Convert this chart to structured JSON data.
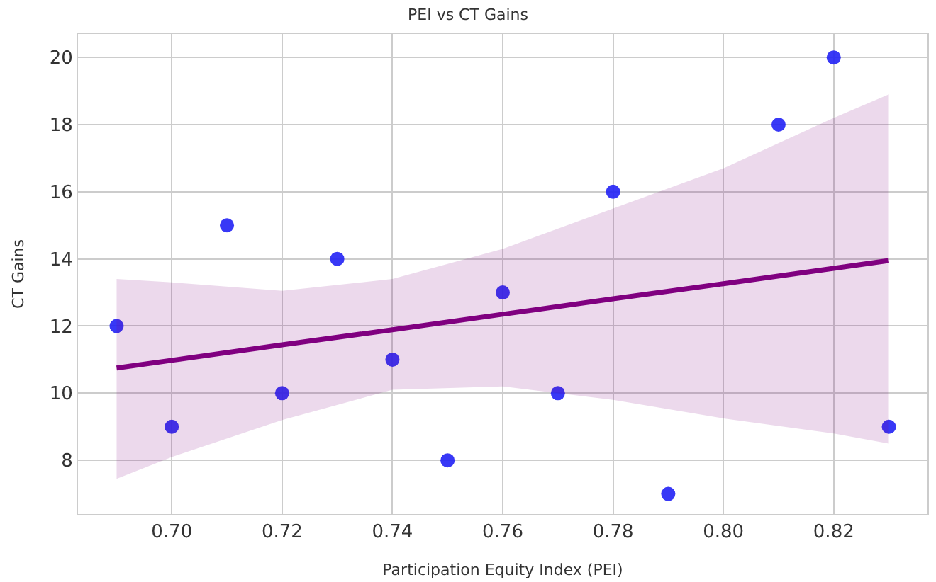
{
  "chart_data": {
    "type": "scatter",
    "title": "PEI vs CT Gains",
    "xlabel": "Participation Equity Index (PEI)",
    "ylabel": "CT Gains",
    "xlim": [
      0.683,
      0.837
    ],
    "xticks": [
      {
        "value": 0.7,
        "label": "0.70"
      },
      {
        "value": 0.72,
        "label": "0.72"
      },
      {
        "value": 0.74,
        "label": "0.74"
      },
      {
        "value": 0.76,
        "label": "0.76"
      },
      {
        "value": 0.78,
        "label": "0.78"
      },
      {
        "value": 0.8,
        "label": "0.80"
      },
      {
        "value": 0.82,
        "label": "0.82"
      }
    ],
    "ylim": [
      6.4,
      20.7
    ],
    "yticks": [
      8,
      10,
      12,
      14,
      16,
      18,
      20
    ],
    "grid": true,
    "series": [
      {
        "marker": "circle",
        "color": "#2222f5",
        "x": [
          0.69,
          0.7,
          0.71,
          0.72,
          0.73,
          0.74,
          0.75,
          0.76,
          0.77,
          0.78,
          0.79,
          0.81,
          0.82,
          0.83
        ],
        "values": [
          12,
          9,
          15,
          10,
          14,
          11,
          8,
          13,
          10,
          16,
          7,
          18,
          20,
          9
        ]
      },
      {
        "type": "line",
        "color": "#800080",
        "x": [
          0.69,
          0.7,
          0.72,
          0.74,
          0.76,
          0.78,
          0.8,
          0.82,
          0.83
        ],
        "values": [
          10.75,
          10.98,
          11.44,
          11.89,
          12.35,
          12.81,
          13.26,
          13.72,
          13.95
        ],
        "lower": [
          7.45,
          8.1,
          9.2,
          10.1,
          10.2,
          9.8,
          9.25,
          8.8,
          8.5
        ],
        "upper": [
          13.4,
          13.3,
          13.05,
          13.4,
          14.3,
          15.5,
          16.7,
          18.2,
          18.9
        ]
      }
    ]
  }
}
